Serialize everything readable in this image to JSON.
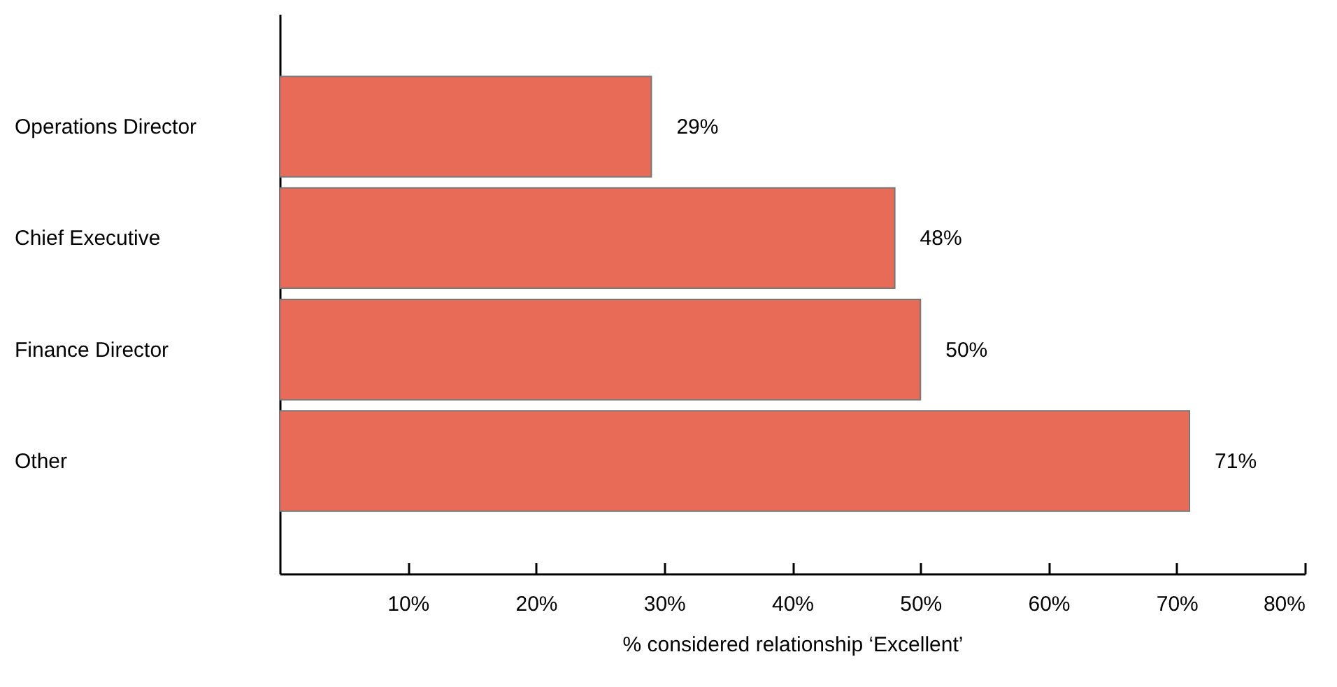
{
  "chart_data": {
    "type": "bar",
    "orientation": "horizontal",
    "categories": [
      "Operations Director",
      "Chief Executive",
      "Finance Director",
      "Other"
    ],
    "values": [
      29,
      48,
      50,
      71
    ],
    "color": "#e86b58",
    "value_labels": [
      "29%",
      "48%",
      "50%",
      "71%"
    ],
    "xlabel": "% considered relationship ‘Excellent’",
    "xlim": [
      0,
      80
    ],
    "xticks": [
      {
        "value": 10,
        "label": "10%"
      },
      {
        "value": 20,
        "label": "20%"
      },
      {
        "value": 30,
        "label": "30%"
      },
      {
        "value": 40,
        "label": "40%"
      },
      {
        "value": 50,
        "label": "50%"
      },
      {
        "value": 60,
        "label": "60%"
      },
      {
        "value": 70,
        "label": "70%"
      },
      {
        "value": 80,
        "label": "80%"
      }
    ],
    "grid": false
  }
}
